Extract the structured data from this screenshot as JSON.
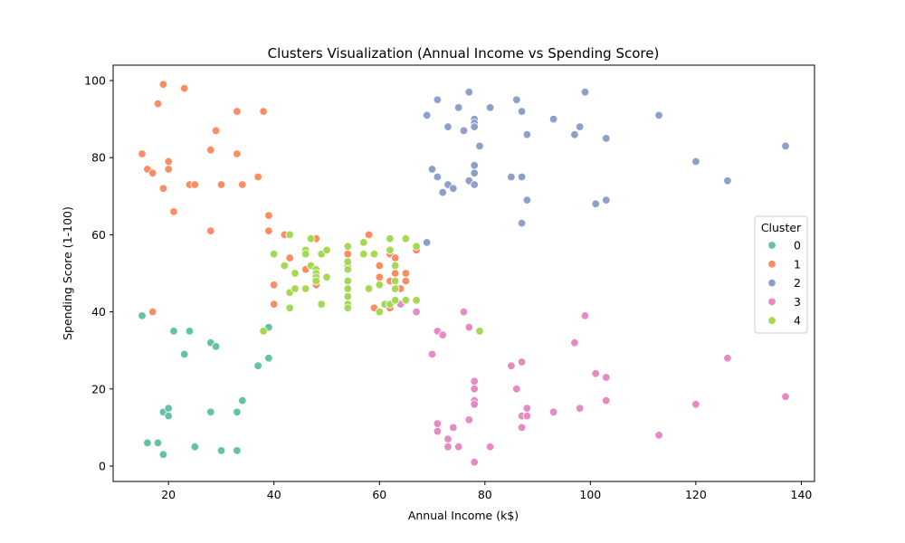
{
  "chart_data": {
    "type": "scatter",
    "title": "Clusters Visualization (Annual Income vs Spending Score)",
    "xlabel": "Annual Income (k$)",
    "ylabel": "Spending Score (1-100)",
    "xlim": [
      9.5,
      142.5
    ],
    "ylim": [
      -4,
      104
    ],
    "xticks": [
      20,
      40,
      60,
      80,
      100,
      120,
      140
    ],
    "yticks": [
      0,
      20,
      40,
      60,
      80,
      100
    ],
    "grid": false,
    "legend": {
      "title": "Cluster",
      "placement": "center-right"
    },
    "series": [
      {
        "name": "0",
        "color": "#66c2a5",
        "points": [
          [
            15,
            39
          ],
          [
            16,
            6
          ],
          [
            18,
            6
          ],
          [
            19,
            3
          ],
          [
            19,
            14
          ],
          [
            20,
            15
          ],
          [
            20,
            13
          ],
          [
            21,
            35
          ],
          [
            23,
            29
          ],
          [
            24,
            35
          ],
          [
            25,
            5
          ],
          [
            28,
            14
          ],
          [
            28,
            32
          ],
          [
            29,
            31
          ],
          [
            30,
            4
          ],
          [
            33,
            4
          ],
          [
            33,
            14
          ],
          [
            34,
            17
          ],
          [
            37,
            26
          ],
          [
            39,
            28
          ],
          [
            39,
            36
          ]
        ]
      },
      {
        "name": "1",
        "color": "#fc8d62",
        "points": [
          [
            15,
            81
          ],
          [
            16,
            77
          ],
          [
            17,
            76
          ],
          [
            17,
            40
          ],
          [
            18,
            94
          ],
          [
            19,
            72
          ],
          [
            19,
            99
          ],
          [
            20,
            79
          ],
          [
            20,
            77
          ],
          [
            21,
            66
          ],
          [
            23,
            98
          ],
          [
            24,
            73
          ],
          [
            25,
            73
          ],
          [
            28,
            82
          ],
          [
            28,
            61
          ],
          [
            29,
            87
          ],
          [
            30,
            73
          ],
          [
            33,
            92
          ],
          [
            33,
            81
          ],
          [
            34,
            73
          ],
          [
            37,
            75
          ],
          [
            38,
            92
          ],
          [
            39,
            65
          ],
          [
            39,
            61
          ],
          [
            40,
            47
          ],
          [
            40,
            42
          ],
          [
            42,
            60
          ],
          [
            43,
            54
          ],
          [
            46,
            56
          ],
          [
            46,
            51
          ],
          [
            48,
            59
          ],
          [
            48,
            47
          ],
          [
            54,
            57
          ],
          [
            54,
            55
          ],
          [
            54,
            52
          ],
          [
            58,
            60
          ],
          [
            59,
            41
          ],
          [
            60,
            52
          ],
          [
            60,
            49
          ],
          [
            61,
            42
          ],
          [
            62,
            48
          ],
          [
            62,
            55
          ],
          [
            62,
            41
          ],
          [
            63,
            54
          ],
          [
            63,
            50
          ],
          [
            63,
            46
          ],
          [
            64,
            46
          ],
          [
            65,
            48
          ],
          [
            65,
            50
          ],
          [
            67,
            56
          ]
        ]
      },
      {
        "name": "2",
        "color": "#8da0cb",
        "points": [
          [
            69,
            91
          ],
          [
            69,
            58
          ],
          [
            70,
            77
          ],
          [
            71,
            95
          ],
          [
            71,
            75
          ],
          [
            72,
            71
          ],
          [
            73,
            88
          ],
          [
            73,
            73
          ],
          [
            74,
            72
          ],
          [
            75,
            93
          ],
          [
            76,
            87
          ],
          [
            77,
            97
          ],
          [
            77,
            74
          ],
          [
            78,
            90
          ],
          [
            78,
            89
          ],
          [
            78,
            88
          ],
          [
            78,
            78
          ],
          [
            78,
            76
          ],
          [
            78,
            73
          ],
          [
            79,
            83
          ],
          [
            81,
            93
          ],
          [
            85,
            75
          ],
          [
            86,
            95
          ],
          [
            87,
            92
          ],
          [
            87,
            75
          ],
          [
            87,
            63
          ],
          [
            88,
            86
          ],
          [
            88,
            69
          ],
          [
            93,
            90
          ],
          [
            97,
            86
          ],
          [
            98,
            88
          ],
          [
            99,
            97
          ],
          [
            101,
            68
          ],
          [
            103,
            85
          ],
          [
            103,
            69
          ],
          [
            113,
            91
          ],
          [
            120,
            79
          ],
          [
            126,
            74
          ],
          [
            137,
            83
          ]
        ]
      },
      {
        "name": "3",
        "color": "#e78ac3",
        "points": [
          [
            64,
            42
          ],
          [
            67,
            40
          ],
          [
            70,
            29
          ],
          [
            71,
            35
          ],
          [
            71,
            11
          ],
          [
            71,
            9
          ],
          [
            72,
            34
          ],
          [
            73,
            7
          ],
          [
            73,
            5
          ],
          [
            74,
            10
          ],
          [
            75,
            5
          ],
          [
            76,
            40
          ],
          [
            77,
            12
          ],
          [
            77,
            36
          ],
          [
            78,
            22
          ],
          [
            78,
            20
          ],
          [
            78,
            17
          ],
          [
            78,
            16
          ],
          [
            78,
            1
          ],
          [
            81,
            5
          ],
          [
            85,
            26
          ],
          [
            86,
            20
          ],
          [
            87,
            27
          ],
          [
            87,
            13
          ],
          [
            87,
            10
          ],
          [
            88,
            13
          ],
          [
            88,
            15
          ],
          [
            93,
            14
          ],
          [
            97,
            32
          ],
          [
            98,
            15
          ],
          [
            99,
            39
          ],
          [
            101,
            24
          ],
          [
            103,
            23
          ],
          [
            103,
            17
          ],
          [
            113,
            8
          ],
          [
            120,
            16
          ],
          [
            126,
            28
          ],
          [
            137,
            18
          ]
        ]
      },
      {
        "name": "4",
        "color": "#a6d854",
        "points": [
          [
            38,
            35
          ],
          [
            40,
            55
          ],
          [
            42,
            52
          ],
          [
            43,
            60
          ],
          [
            43,
            45
          ],
          [
            43,
            41
          ],
          [
            44,
            50
          ],
          [
            44,
            46
          ],
          [
            46,
            56
          ],
          [
            46,
            55
          ],
          [
            46,
            46
          ],
          [
            47,
            52
          ],
          [
            47,
            59
          ],
          [
            48,
            51
          ],
          [
            48,
            50
          ],
          [
            48,
            49
          ],
          [
            48,
            48
          ],
          [
            49,
            55
          ],
          [
            49,
            42
          ],
          [
            50,
            56
          ],
          [
            50,
            49
          ],
          [
            54,
            57
          ],
          [
            54,
            53
          ],
          [
            54,
            51
          ],
          [
            54,
            48
          ],
          [
            54,
            46
          ],
          [
            54,
            44
          ],
          [
            54,
            42
          ],
          [
            54,
            41
          ],
          [
            57,
            58
          ],
          [
            57,
            55
          ],
          [
            58,
            46
          ],
          [
            59,
            55
          ],
          [
            60,
            47
          ],
          [
            60,
            40
          ],
          [
            61,
            42
          ],
          [
            62,
            59
          ],
          [
            62,
            56
          ],
          [
            62,
            42
          ],
          [
            63,
            52
          ],
          [
            63,
            48
          ],
          [
            63,
            43
          ],
          [
            63,
            46
          ],
          [
            65,
            59
          ],
          [
            65,
            43
          ],
          [
            67,
            57
          ],
          [
            67,
            43
          ],
          [
            79,
            35
          ]
        ]
      }
    ]
  }
}
